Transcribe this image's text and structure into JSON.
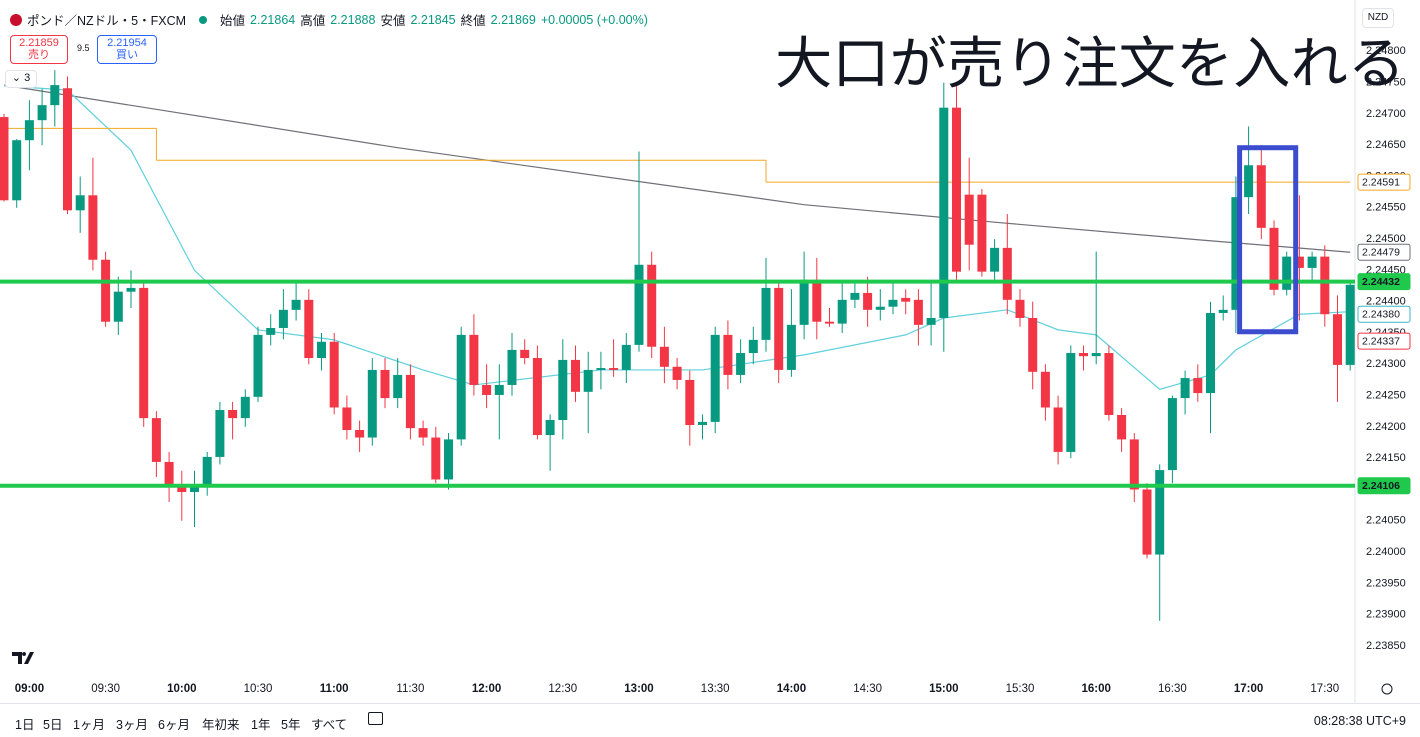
{
  "header": {
    "symbol": "ポンド／NZドル・5・FXCM",
    "open_label": "始値",
    "open": "2.21864",
    "high_label": "高値",
    "high": "2.21888",
    "low_label": "安値",
    "low": "2.21845",
    "close_label": "終値",
    "close": "2.21869",
    "change": "+0.00005 (+0.00%)",
    "sell_price": "2.21859",
    "sell_label": "売り",
    "spread": "9.5",
    "buy_price": "2.21954",
    "buy_label": "買い",
    "indicators_count": "3",
    "currency": "NZD"
  },
  "footer": {
    "ranges": [
      "1日",
      "5日",
      "1ヶ月",
      "3ヶ月",
      "6ヶ月",
      "年初来",
      "1年",
      "5年",
      "すべて"
    ],
    "clock": "08:28:38 UTC+9"
  },
  "chart_data": {
    "type": "candlestick",
    "annotation": "大口が売り注文を入れる",
    "up_color": "#089981",
    "down_color": "#f23645",
    "grid": false,
    "ylim": [
      2.23802,
      2.24882
    ],
    "yticks": [
      {
        "value": 2.2385,
        "label": "2.23850"
      },
      {
        "value": 2.239,
        "label": "2.23900"
      },
      {
        "value": 2.2395,
        "label": "2.23950"
      },
      {
        "value": 2.24,
        "label": "2.24000"
      },
      {
        "value": 2.2405,
        "label": "2.24050"
      },
      {
        "value": 2.241,
        "label": "2.24100"
      },
      {
        "value": 2.2415,
        "label": "2.24150"
      },
      {
        "value": 2.242,
        "label": "2.24200"
      },
      {
        "value": 2.2425,
        "label": "2.24250"
      },
      {
        "value": 2.243,
        "label": "2.24300"
      },
      {
        "value": 2.2435,
        "label": "2.24350"
      },
      {
        "value": 2.244,
        "label": "2.24400"
      },
      {
        "value": 2.2445,
        "label": "2.24450"
      },
      {
        "value": 2.245,
        "label": "2.24500"
      },
      {
        "value": 2.2455,
        "label": "2.24550"
      },
      {
        "value": 2.246,
        "label": "2.24600"
      },
      {
        "value": 2.2465,
        "label": "2.24650"
      },
      {
        "value": 2.247,
        "label": "2.24700"
      },
      {
        "value": 2.2475,
        "label": "2.24750"
      },
      {
        "value": 2.248,
        "label": "2.24800"
      }
    ],
    "categories": [
      null,
      null,
      "09:00",
      null,
      null,
      null,
      null,
      null,
      "09:30",
      null,
      null,
      null,
      null,
      null,
      "10:00",
      null,
      null,
      null,
      null,
      null,
      "10:30",
      null,
      null,
      null,
      null,
      null,
      "11:00",
      null,
      null,
      null,
      null,
      null,
      "11:30",
      null,
      null,
      null,
      null,
      null,
      "12:00",
      null,
      null,
      null,
      null,
      null,
      "12:30",
      null,
      null,
      null,
      null,
      null,
      "13:00",
      null,
      null,
      null,
      null,
      null,
      "13:30",
      null,
      null,
      null,
      null,
      null,
      "14:00",
      null,
      null,
      null,
      null,
      null,
      "14:30",
      null,
      null,
      null,
      null,
      null,
      "15:00",
      null,
      null,
      null,
      null,
      null,
      "15:30",
      null,
      null,
      null,
      null,
      null,
      "16:00",
      null,
      null,
      null,
      null,
      null,
      "16:30",
      null,
      null,
      null,
      null,
      null,
      "17:00",
      null,
      null,
      null,
      null,
      null,
      "17:30",
      null,
      null
    ],
    "ohlc": [
      [
        2.24695,
        2.247,
        2.2456,
        2.24562
      ],
      [
        2.24562,
        2.2466,
        2.2455,
        2.24658
      ],
      [
        2.24658,
        2.24722,
        2.2461,
        2.2469
      ],
      [
        2.2469,
        2.2474,
        2.2465,
        2.24714
      ],
      [
        2.24714,
        2.2477,
        2.2468,
        2.24746
      ],
      [
        2.24741,
        2.2476,
        2.2454,
        2.24546
      ],
      [
        2.24546,
        2.246,
        2.2451,
        2.2457
      ],
      [
        2.2457,
        2.2463,
        2.2445,
        2.24467
      ],
      [
        2.24467,
        2.2448,
        2.2436,
        2.24368
      ],
      [
        2.24368,
        2.2444,
        2.24347,
        2.24416
      ],
      [
        2.24416,
        2.2445,
        2.2439,
        2.24422
      ],
      [
        2.24422,
        2.2443,
        2.242,
        2.24214
      ],
      [
        2.24214,
        2.24225,
        2.2412,
        2.24144
      ],
      [
        2.24144,
        2.2416,
        2.2408,
        2.24107
      ],
      [
        2.24107,
        2.2413,
        2.2405,
        2.24096
      ],
      [
        2.24096,
        2.2413,
        2.2404,
        2.24107
      ],
      [
        2.24107,
        2.2416,
        2.2409,
        2.24152
      ],
      [
        2.24152,
        2.2424,
        2.2414,
        2.24227
      ],
      [
        2.24227,
        2.2424,
        2.2418,
        2.24214
      ],
      [
        2.24214,
        2.2426,
        2.242,
        2.24248
      ],
      [
        2.24248,
        2.2436,
        2.2424,
        2.24347
      ],
      [
        2.24347,
        2.2438,
        2.2433,
        2.24358
      ],
      [
        2.24358,
        2.2442,
        2.2434,
        2.24387
      ],
      [
        2.24387,
        2.2443,
        2.2437,
        2.24403
      ],
      [
        2.24403,
        2.2442,
        2.243,
        2.2431
      ],
      [
        2.2431,
        2.2435,
        2.2429,
        2.24336
      ],
      [
        2.24336,
        2.2435,
        2.2422,
        2.24231
      ],
      [
        2.24231,
        2.2425,
        2.2418,
        2.24195
      ],
      [
        2.24195,
        2.2421,
        2.2416,
        2.24183
      ],
      [
        2.24183,
        2.2431,
        2.2417,
        2.24291
      ],
      [
        2.24291,
        2.2431,
        2.2423,
        2.24246
      ],
      [
        2.24246,
        2.2431,
        2.2423,
        2.24283
      ],
      [
        2.24283,
        2.243,
        2.2418,
        2.24198
      ],
      [
        2.24198,
        2.2421,
        2.2417,
        2.24183
      ],
      [
        2.24183,
        2.242,
        2.2411,
        2.24116
      ],
      [
        2.24116,
        2.2419,
        2.241,
        2.2418
      ],
      [
        2.2418,
        2.2436,
        2.2417,
        2.24347
      ],
      [
        2.24347,
        2.2438,
        2.2425,
        2.24267
      ],
      [
        2.24267,
        2.243,
        2.2423,
        2.24251
      ],
      [
        2.24251,
        2.243,
        2.2418,
        2.24267
      ],
      [
        2.24267,
        2.2435,
        2.2425,
        2.24323
      ],
      [
        2.24323,
        2.2434,
        2.243,
        2.2431
      ],
      [
        2.2431,
        2.2433,
        2.2418,
        2.24187
      ],
      [
        2.24187,
        2.2422,
        2.2413,
        2.24211
      ],
      [
        2.24211,
        2.2434,
        2.2418,
        2.24307
      ],
      [
        2.24307,
        2.2433,
        2.2424,
        2.24256
      ],
      [
        2.24256,
        2.2432,
        2.2419,
        2.24291
      ],
      [
        2.24291,
        2.2432,
        2.2426,
        2.24294
      ],
      [
        2.24294,
        2.2434,
        2.2428,
        2.24291
      ],
      [
        2.24291,
        2.2435,
        2.2427,
        2.24331
      ],
      [
        2.24331,
        2.2464,
        2.2432,
        2.24459
      ],
      [
        2.24459,
        2.2448,
        2.2431,
        2.24328
      ],
      [
        2.24328,
        2.2436,
        2.2427,
        2.24296
      ],
      [
        2.24296,
        2.2431,
        2.2426,
        2.24275
      ],
      [
        2.24275,
        2.2429,
        2.2417,
        2.24203
      ],
      [
        2.24203,
        2.2422,
        2.2418,
        2.24208
      ],
      [
        2.24208,
        2.2436,
        2.2419,
        2.24347
      ],
      [
        2.24347,
        2.2437,
        2.2426,
        2.24283
      ],
      [
        2.24283,
        2.2434,
        2.2427,
        2.24318
      ],
      [
        2.24318,
        2.2436,
        2.243,
        2.24339
      ],
      [
        2.24339,
        2.2447,
        2.2432,
        2.24422
      ],
      [
        2.24422,
        2.2443,
        2.2427,
        2.24291
      ],
      [
        2.24291,
        2.2442,
        2.2428,
        2.24363
      ],
      [
        2.24363,
        2.2448,
        2.2434,
        2.24435
      ],
      [
        2.24435,
        2.2447,
        2.2434,
        2.24368
      ],
      [
        2.24368,
        2.2439,
        2.2436,
        2.24365
      ],
      [
        2.24365,
        2.2443,
        2.2435,
        2.24403
      ],
      [
        2.24403,
        2.2443,
        2.2439,
        2.24414
      ],
      [
        2.24414,
        2.2444,
        2.2436,
        2.24387
      ],
      [
        2.24387,
        2.2442,
        2.2437,
        2.24392
      ],
      [
        2.24392,
        2.2443,
        2.2438,
        2.24403
      ],
      [
        2.24406,
        2.2442,
        2.2438,
        2.244
      ],
      [
        2.24403,
        2.2442,
        2.2433,
        2.24363
      ],
      [
        2.24363,
        2.2443,
        2.2433,
        2.24374
      ],
      [
        2.24374,
        2.2475,
        2.2432,
        2.2471
      ],
      [
        2.2471,
        2.2475,
        2.2443,
        2.24448
      ],
      [
        2.24571,
        2.2463,
        2.2445,
        2.24491
      ],
      [
        2.24571,
        2.2458,
        2.2444,
        2.24448
      ],
      [
        2.24448,
        2.245,
        2.2443,
        2.24486
      ],
      [
        2.24486,
        2.2454,
        2.2438,
        2.24403
      ],
      [
        2.24403,
        2.2442,
        2.2436,
        2.24374
      ],
      [
        2.24374,
        2.244,
        2.2426,
        2.24288
      ],
      [
        2.24288,
        2.243,
        2.2421,
        2.24231
      ],
      [
        2.24231,
        2.2425,
        2.2414,
        2.2416
      ],
      [
        2.2416,
        2.2433,
        2.2415,
        2.24318
      ],
      [
        2.24318,
        2.2433,
        2.2429,
        2.24313
      ],
      [
        2.24313,
        2.2448,
        2.243,
        2.24318
      ],
      [
        2.24318,
        2.2433,
        2.2421,
        2.24219
      ],
      [
        2.24219,
        2.2423,
        2.2416,
        2.2418
      ],
      [
        2.2418,
        2.2419,
        2.2408,
        2.241
      ],
      [
        2.241,
        2.2411,
        2.2399,
        2.23996
      ],
      [
        2.23996,
        2.2414,
        2.2389,
        2.24131
      ],
      [
        2.24131,
        2.2425,
        2.2411,
        2.24246
      ],
      [
        2.24246,
        2.2429,
        2.2422,
        2.24278
      ],
      [
        2.24278,
        2.243,
        2.2424,
        2.24254
      ],
      [
        2.24254,
        2.244,
        2.2419,
        2.24382
      ],
      [
        2.24382,
        2.2441,
        2.2437,
        2.24387
      ],
      [
        2.24387,
        2.246,
        2.2435,
        2.24567
      ],
      [
        2.24567,
        2.2468,
        2.2454,
        2.24618
      ],
      [
        2.24618,
        2.2465,
        2.245,
        2.24518
      ],
      [
        2.24518,
        2.2453,
        2.2441,
        2.24419
      ],
      [
        2.24419,
        2.2448,
        2.2441,
        2.24472
      ],
      [
        2.24472,
        2.2457,
        2.2437,
        2.24454
      ],
      [
        2.24454,
        2.2448,
        2.2443,
        2.24472
      ],
      [
        2.24472,
        2.2449,
        2.2436,
        2.2438
      ],
      [
        2.2438,
        2.2441,
        2.2424,
        2.24299
      ],
      [
        2.24299,
        2.2443,
        2.2429,
        2.24427
      ]
    ],
    "moving_averages": [
      {
        "color": "#6f7079",
        "x": [
          0,
          31,
          63,
          78,
          94,
          106
        ],
        "values": [
          2.24746,
          2.24646,
          2.24555,
          2.24527,
          2.24499,
          2.24479
        ]
      },
      {
        "color": "#5fd0dc",
        "x": [
          0,
          5,
          10,
          15,
          20,
          26,
          33,
          37,
          47,
          55,
          63,
          71,
          74,
          79,
          83,
          86,
          91,
          95,
          97,
          102,
          106
        ],
        "values": [
          2.24745,
          2.24738,
          2.24642,
          2.2445,
          2.24355,
          2.24339,
          2.24291,
          2.24267,
          2.24291,
          2.24291,
          2.24315,
          2.24347,
          2.24374,
          2.24387,
          2.24355,
          2.24347,
          2.2426,
          2.24283,
          2.24323,
          2.2438,
          2.24384
        ]
      }
    ],
    "step_line": {
      "color": "#f5a623",
      "segments": [
        {
          "from": 0,
          "to": 12,
          "value": 2.24677
        },
        {
          "from": 13,
          "to": 60,
          "value": 2.24626
        },
        {
          "from": 61,
          "to": 106,
          "value": 2.24591
        }
      ]
    },
    "levels": [
      {
        "value": 2.24432,
        "color": "#1ec94c"
      },
      {
        "value": 2.24106,
        "color": "#1ec94c"
      }
    ],
    "highlight": {
      "from": 98,
      "to": 101,
      "top": 2.24646,
      "bottom": 2.24352,
      "color": "#3b4ccf"
    },
    "price_badges": [
      {
        "value": 2.24591,
        "color": "#f5a623",
        "filled": false
      },
      {
        "value": 2.24479,
        "color": "#6f7079",
        "filled": false
      },
      {
        "value": 2.24432,
        "color": "#1ec94c",
        "filled": true
      },
      {
        "value": 2.2438,
        "label": "2.24380",
        "color": "#3fb7c6",
        "filled": false
      },
      {
        "value": 2.24337,
        "color": "#f23645",
        "filled": false
      },
      {
        "value": 2.24106,
        "color": "#1ec94c",
        "filled": true
      }
    ]
  }
}
